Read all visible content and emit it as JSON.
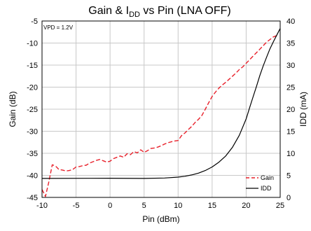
{
  "chart_data": {
    "type": "line",
    "title": "Gain & I",
    "title_subscript": "DD",
    "title_suffix": " vs Pin (LNA OFF)",
    "xlabel": "Pin (dBm)",
    "ylabel_left": "Gain (dB)",
    "ylabel_right": "IDD (mA)",
    "annotation": "VPD = 1.2V",
    "xlim": [
      -10,
      25
    ],
    "ylim_left": [
      -45,
      -5
    ],
    "ylim_right": [
      0,
      40
    ],
    "x_ticks": [
      "-10",
      "-5",
      "0",
      "5",
      "10",
      "15",
      "20",
      "25"
    ],
    "y_left_ticks": [
      "-5",
      "-10",
      "-15",
      "-20",
      "-25",
      "-30",
      "-35",
      "-40",
      "-45"
    ],
    "y_right_ticks": [
      "40",
      "35",
      "30",
      "25",
      "20",
      "15",
      "10",
      "5",
      "0"
    ],
    "grid": true,
    "legend_position": "bottom-right",
    "series": [
      {
        "name": "Gain",
        "axis": "left",
        "color": "#e8202a",
        "dash": "dashed",
        "x": [
          -10,
          -9.5,
          -9,
          -8.5,
          -8,
          -7.5,
          -7,
          -6.5,
          -6,
          -5.5,
          -5,
          -4.5,
          -4,
          -3.5,
          -3,
          -2.5,
          -2,
          -1.5,
          -1,
          -0.5,
          0,
          0.5,
          1,
          1.5,
          2,
          2.5,
          3,
          3.5,
          4,
          4.5,
          5,
          5.5,
          6,
          6.5,
          7,
          7.5,
          8,
          8.5,
          9,
          9.5,
          10,
          10.5,
          11,
          11.5,
          12,
          12.5,
          13,
          13.5,
          14,
          14.5,
          15,
          15.5,
          16,
          16.5,
          17,
          17.5,
          18,
          18.5,
          19,
          19.5,
          20,
          20.5,
          21,
          21.5,
          22,
          22.5,
          23,
          23.5,
          24,
          24.5
        ],
        "values": [
          -43.2,
          -44.8,
          -41.5,
          -37.6,
          -37.9,
          -38.7,
          -38.8,
          -39.0,
          -38.9,
          -38.7,
          -38.1,
          -38.0,
          -37.8,
          -37.7,
          -37.2,
          -36.9,
          -36.6,
          -36.4,
          -36.7,
          -37.0,
          -36.8,
          -36.2,
          -35.9,
          -35.6,
          -35.9,
          -35.1,
          -35.3,
          -34.6,
          -34.9,
          -34.2,
          -34.8,
          -34.4,
          -33.9,
          -33.8,
          -33.6,
          -33.3,
          -32.9,
          -32.6,
          -32.4,
          -32.2,
          -32.1,
          -31.0,
          -30.4,
          -29.6,
          -28.9,
          -28.0,
          -27.3,
          -26.4,
          -25.0,
          -23.5,
          -22.1,
          -21.1,
          -20.2,
          -19.5,
          -18.9,
          -18.2,
          -17.5,
          -16.8,
          -16.0,
          -15.4,
          -14.6,
          -13.8,
          -13.0,
          -12.2,
          -11.4,
          -10.6,
          -9.8,
          -9.2,
          -8.6,
          -8.3
        ]
      },
      {
        "name": "IDD",
        "axis": "right",
        "color": "#000000",
        "dash": "solid",
        "x": [
          -10,
          0,
          5,
          8,
          10,
          11,
          12,
          13,
          14,
          15,
          16,
          17,
          18,
          19,
          20,
          20.5,
          21,
          21.5,
          22,
          22.5,
          23,
          23.5,
          24,
          24.5,
          25
        ],
        "values": [
          4.3,
          4.35,
          4.3,
          4.4,
          4.6,
          4.8,
          5.1,
          5.5,
          6.1,
          6.9,
          8.0,
          9.4,
          11.4,
          14.1,
          17.8,
          20.3,
          22.7,
          25.1,
          27.6,
          29.8,
          31.8,
          33.7,
          35.3,
          36.8,
          38.3
        ]
      }
    ]
  }
}
